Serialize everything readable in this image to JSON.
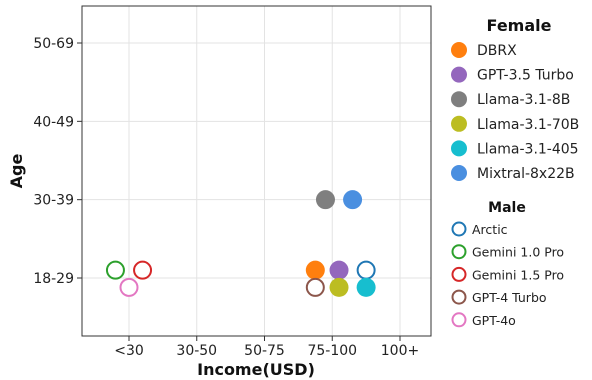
{
  "chart_data": {
    "type": "scatter",
    "xlabel": "Income(USD)",
    "ylabel": "Age",
    "x_categories": [
      "<30",
      "30-50",
      "50-75",
      "75-100",
      "100+"
    ],
    "y_categories": [
      "18-29",
      "30-39",
      "40-49",
      "50-69"
    ],
    "grid": true,
    "legend": {
      "placement": "right",
      "groups": [
        {
          "title": "Female",
          "marker": "filled",
          "items": [
            {
              "name": "DBRX",
              "color": "#ff7f0e"
            },
            {
              "name": "GPT-3.5 Turbo",
              "color": "#9467bd"
            },
            {
              "name": "Llama-3.1-8B",
              "color": "#7f7f7f"
            },
            {
              "name": "Llama-3.1-70B",
              "color": "#bcbd22"
            },
            {
              "name": "Llama-3.1-405",
              "color": "#17becf"
            },
            {
              "name": "Mixtral-8x22B",
              "color": "#4a8fe0"
            }
          ]
        },
        {
          "title": "Male",
          "marker": "open",
          "items": [
            {
              "name": "Arctic",
              "color": "#1f77b4"
            },
            {
              "name": "Gemini 1.0 Pro",
              "color": "#2ca02c"
            },
            {
              "name": "Gemini 1.5 Pro",
              "color": "#d62728"
            },
            {
              "name": "GPT-4 Turbo",
              "color": "#8c564b"
            },
            {
              "name": "GPT-4o",
              "color": "#e377c2"
            }
          ]
        }
      ]
    },
    "points": [
      {
        "model": "Gemini 1.0 Pro",
        "gender": "Male",
        "x": "<30",
        "y": "18-29",
        "color": "#2ca02c",
        "filled": false,
        "dx": -0.2,
        "dy": 0.1
      },
      {
        "model": "Gemini 1.5 Pro",
        "gender": "Male",
        "x": "<30",
        "y": "18-29",
        "color": "#d62728",
        "filled": false,
        "dx": 0.2,
        "dy": 0.1
      },
      {
        "model": "GPT-4o",
        "gender": "Male",
        "x": "<30",
        "y": "18-29",
        "color": "#e377c2",
        "filled": false,
        "dx": 0.0,
        "dy": -0.12
      },
      {
        "model": "Llama-3.1-8B",
        "gender": "Female",
        "x": "75-100",
        "y": "30-39",
        "color": "#7f7f7f",
        "filled": true,
        "dx": -0.1,
        "dy": 0.0
      },
      {
        "model": "Mixtral-8x22B",
        "gender": "Female",
        "x": "75-100",
        "y": "30-39",
        "color": "#4a8fe0",
        "filled": true,
        "dx": 0.3,
        "dy": 0.0
      },
      {
        "model": "DBRX",
        "gender": "Female",
        "x": "75-100",
        "y": "18-29",
        "color": "#ff7f0e",
        "filled": true,
        "dx": -0.25,
        "dy": 0.1
      },
      {
        "model": "GPT-3.5 Turbo",
        "gender": "Female",
        "x": "75-100",
        "y": "18-29",
        "color": "#9467bd",
        "filled": true,
        "dx": 0.1,
        "dy": 0.1
      },
      {
        "model": "Arctic",
        "gender": "Male",
        "x": "75-100",
        "y": "18-29",
        "color": "#1f77b4",
        "filled": false,
        "dx": 0.5,
        "dy": 0.1
      },
      {
        "model": "GPT-4 Turbo",
        "gender": "Male",
        "x": "75-100",
        "y": "18-29",
        "color": "#8c564b",
        "filled": false,
        "dx": -0.25,
        "dy": -0.12
      },
      {
        "model": "Llama-3.1-70B",
        "gender": "Female",
        "x": "75-100",
        "y": "18-29",
        "color": "#bcbd22",
        "filled": true,
        "dx": 0.1,
        "dy": -0.12
      },
      {
        "model": "Llama-3.1-405",
        "gender": "Female",
        "x": "75-100",
        "y": "18-29",
        "color": "#17becf",
        "filled": true,
        "dx": 0.5,
        "dy": -0.12
      }
    ]
  }
}
